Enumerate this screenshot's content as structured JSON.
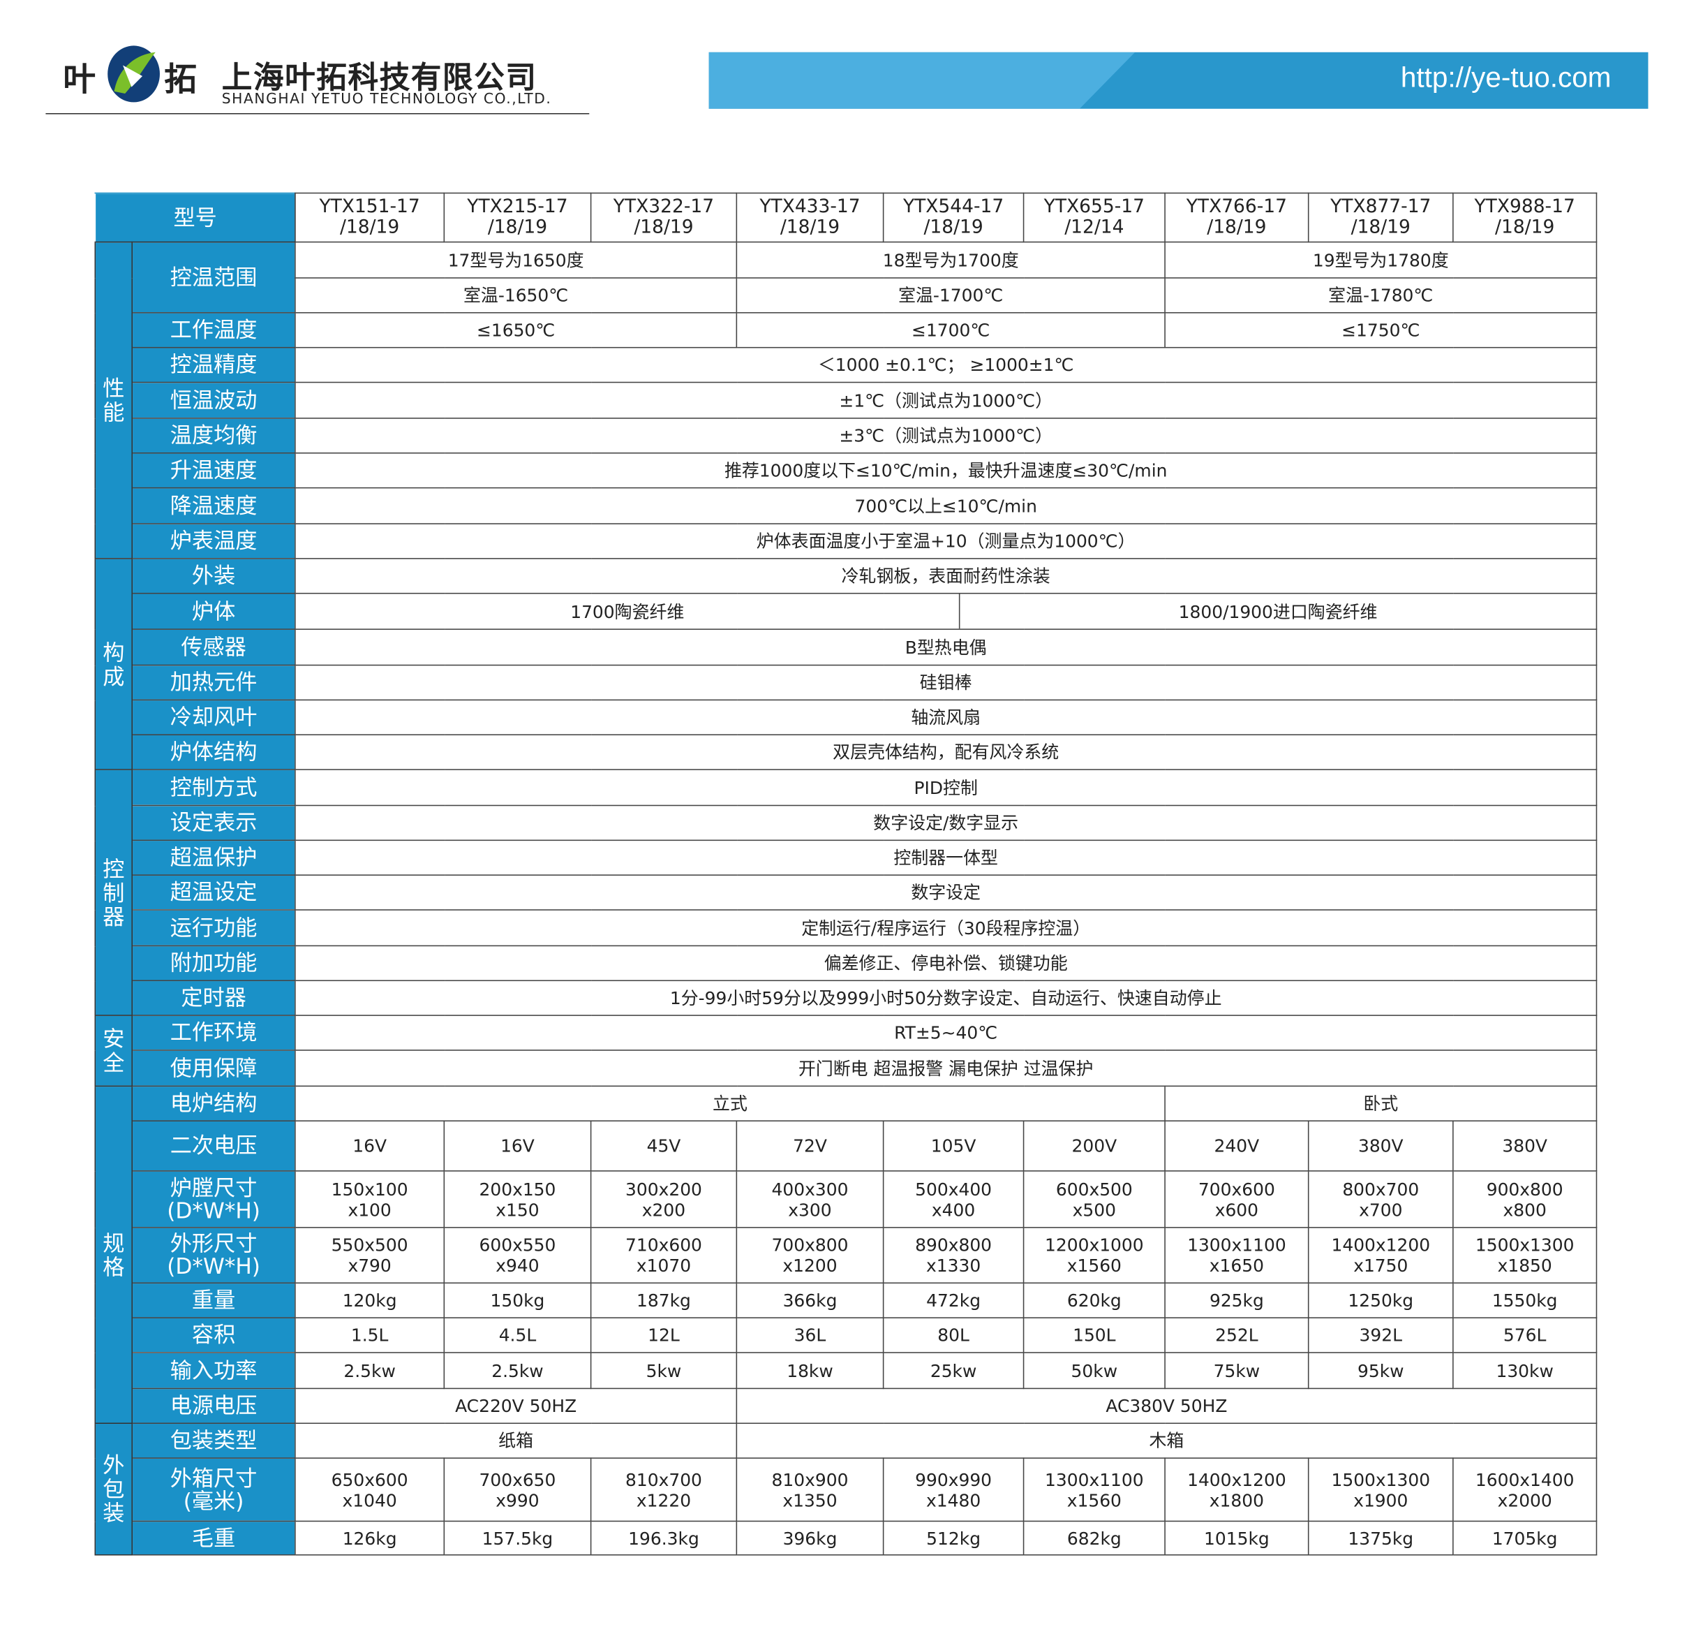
{
  "header": {
    "logo_left": "叶",
    "logo_right": "拓",
    "company_cn": "上海叶拓科技有限公司",
    "company_en": "SHANGHAI  YETUO  TECHNOLOGY  CO.,LTD.",
    "url": "http://ye-tuo.com",
    "colors": {
      "brand_blue": "#1a91c8",
      "banner_light": "#4cafe0",
      "banner_dark": "#2997cc",
      "logo_navy": "#123f78",
      "logo_green": "#7bbf2a"
    }
  },
  "table": {
    "model_label": "型号",
    "models": [
      "YTX151-17\n/18/19",
      "YTX215-17\n/18/19",
      "YTX322-17\n/18/19",
      "YTX433-17\n/18/19",
      "YTX544-17\n/18/19",
      "YTX655-17\n/12/14",
      "YTX766-17\n/18/19",
      "YTX877-17\n/18/19",
      "YTX988-17\n/18/19"
    ],
    "groups": [
      {
        "name": "性\n能",
        "rows": [
          {
            "label": "控温范围",
            "h": 65,
            "sub": [
              {
                "h": 33,
                "cells": [
                  [
                    "17型号为1650度",
                    3
                  ],
                  [
                    "18型号为1700度",
                    3
                  ],
                  [
                    "19型号为1780度",
                    3
                  ]
                ]
              },
              {
                "h": 32,
                "cells": [
                  [
                    "室温-1650℃",
                    3
                  ],
                  [
                    "室温-1700℃",
                    3
                  ],
                  [
                    "室温-1780℃",
                    3
                  ]
                ]
              }
            ]
          },
          {
            "label": "工作温度",
            "h": 32,
            "cells": [
              [
                "≤1650℃",
                3
              ],
              [
                "≤1700℃",
                3
              ],
              [
                "≤1750℃",
                3
              ]
            ]
          },
          {
            "label": "控温精度",
            "h": 32,
            "cells": [
              [
                "＜1000 ±0.1℃；  ≥1000±1℃",
                9
              ]
            ]
          },
          {
            "label": "恒温波动",
            "h": 33,
            "cells": [
              [
                "±1℃（测试点为1000℃）",
                9
              ]
            ]
          },
          {
            "label": "温度均衡",
            "h": 32,
            "cells": [
              [
                "±3℃（测试点为1000℃）",
                9
              ]
            ]
          },
          {
            "label": "升温速度",
            "h": 32,
            "cells": [
              [
                "推荐1000度以下≤10℃/min，最快升温速度≤30℃/min",
                9
              ]
            ]
          },
          {
            "label": "降温速度",
            "h": 33,
            "cells": [
              [
                "700℃以上≤10℃/min",
                9
              ]
            ]
          },
          {
            "label": "炉表温度",
            "h": 32,
            "cells": [
              [
                "炉体表面温度小于室温+10（测量点为1000℃）",
                9
              ]
            ]
          }
        ]
      },
      {
        "name": "构\n成",
        "rows": [
          {
            "label": "外装",
            "h": 32,
            "cells": [
              [
                "冷轧钢板，表面耐药性涂装",
                9
              ]
            ]
          },
          {
            "label": "炉体",
            "h": 32,
            "split": [
              "1700陶瓷纤维",
              "1800/1900进口陶瓷纤维"
            ]
          },
          {
            "label": "传感器",
            "h": 33,
            "cells": [
              [
                "B型热电偶",
                9
              ]
            ]
          },
          {
            "label": "加热元件",
            "h": 32,
            "cells": [
              [
                "硅钼棒",
                9
              ]
            ]
          },
          {
            "label": "冷却风叶",
            "h": 32,
            "cells": [
              [
                "轴流风扇",
                9
              ]
            ]
          },
          {
            "label": "炉体结构",
            "h": 32,
            "cells": [
              [
                "双层壳体结构，配有风冷系统",
                9
              ]
            ]
          }
        ]
      },
      {
        "name": "控\n制\n器",
        "rows": [
          {
            "label": "控制方式",
            "h": 33,
            "cells": [
              [
                "PID控制",
                9
              ]
            ]
          },
          {
            "label": "设定表示",
            "h": 32,
            "cells": [
              [
                "数字设定/数字显示",
                9
              ]
            ]
          },
          {
            "label": "超温保护",
            "h": 32,
            "cells": [
              [
                "控制器一体型",
                9
              ]
            ]
          },
          {
            "label": "超温设定",
            "h": 32,
            "cells": [
              [
                "数字设定",
                9
              ]
            ]
          },
          {
            "label": "运行功能",
            "h": 33,
            "cells": [
              [
                "定制运行/程序运行（30段程序控温）",
                9
              ]
            ]
          },
          {
            "label": "附加功能",
            "h": 32,
            "cells": [
              [
                "偏差修正、停电补偿、锁键功能",
                9
              ]
            ]
          },
          {
            "label": "定时器",
            "h": 32,
            "cells": [
              [
                "1分-99小时59分以及999小时50分数字设定、自动运行、快速自动停止",
                9
              ]
            ]
          }
        ]
      },
      {
        "name": "安\n全",
        "rows": [
          {
            "label": "工作环境",
            "h": 32,
            "cells": [
              [
                "RT±5~40℃",
                9
              ]
            ]
          },
          {
            "label": "使用保障",
            "h": 33,
            "cells": [
              [
                "开门断电 超温报警 漏电保护 过温保护",
                9
              ]
            ]
          }
        ]
      },
      {
        "name": "规\n格",
        "rows": [
          {
            "label": "电炉结构",
            "h": 32,
            "cells": [
              [
                "立式",
                6
              ],
              [
                "卧式",
                3
              ]
            ]
          },
          {
            "label": "二次电压",
            "h": 46,
            "cells": [
              [
                "16V",
                1
              ],
              [
                "16V",
                1
              ],
              [
                "45V",
                1
              ],
              [
                "72V",
                1
              ],
              [
                "105V",
                1
              ],
              [
                "200V",
                1
              ],
              [
                "240V",
                1
              ],
              [
                "380V",
                1
              ],
              [
                "380V",
                1
              ]
            ]
          },
          {
            "label": "炉膛尺寸\n(D*W*H)",
            "h": 52,
            "cells": [
              [
                "150x100\nx100",
                1
              ],
              [
                "200x150\nx150",
                1
              ],
              [
                "300x200\nx200",
                1
              ],
              [
                "400x300\nx300",
                1
              ],
              [
                "500x400\nx400",
                1
              ],
              [
                "600x500\nx500",
                1
              ],
              [
                "700x600\nx600",
                1
              ],
              [
                "800x700\nx700",
                1
              ],
              [
                "900x800\nx800",
                1
              ]
            ]
          },
          {
            "label": "外形尺寸\n(D*W*H)",
            "h": 51,
            "cells": [
              [
                "550x500\nx790",
                1
              ],
              [
                "600x550\nx940",
                1
              ],
              [
                "710x600\nx1070",
                1
              ],
              [
                "700x800\nx1200",
                1
              ],
              [
                "890x800\nx1330",
                1
              ],
              [
                "1200x1000\nx1560",
                1
              ],
              [
                "1300x1100\nx1650",
                1
              ],
              [
                "1400x1200\nx1750",
                1
              ],
              [
                "1500x1300\nx1850",
                1
              ]
            ]
          },
          {
            "label": "重量",
            "h": 32,
            "cells": [
              [
                "120kg",
                1
              ],
              [
                "150kg",
                1
              ],
              [
                "187kg",
                1
              ],
              [
                "366kg",
                1
              ],
              [
                "472kg",
                1
              ],
              [
                "620kg",
                1
              ],
              [
                "925kg",
                1
              ],
              [
                "1250kg",
                1
              ],
              [
                "1550kg",
                1
              ]
            ]
          },
          {
            "label": "容积",
            "h": 32,
            "cells": [
              [
                "1.5L",
                1
              ],
              [
                "4.5L",
                1
              ],
              [
                "12L",
                1
              ],
              [
                "36L",
                1
              ],
              [
                "80L",
                1
              ],
              [
                "150L",
                1
              ],
              [
                "252L",
                1
              ],
              [
                "392L",
                1
              ],
              [
                "576L",
                1
              ]
            ]
          },
          {
            "label": "输入功率",
            "h": 33,
            "cells": [
              [
                "2.5kw",
                1
              ],
              [
                "2.5kw",
                1
              ],
              [
                "5kw",
                1
              ],
              [
                "18kw",
                1
              ],
              [
                "25kw",
                1
              ],
              [
                "50kw",
                1
              ],
              [
                "75kw",
                1
              ],
              [
                "95kw",
                1
              ],
              [
                "130kw",
                1
              ]
            ]
          },
          {
            "label": "电源电压",
            "h": 32,
            "cells": [
              [
                "AC220V 50HZ",
                3
              ],
              [
                "AC380V 50HZ",
                6
              ]
            ]
          }
        ]
      },
      {
        "name": "外\n包\n装",
        "rows": [
          {
            "label": "包装类型",
            "h": 32,
            "cells": [
              [
                "纸箱",
                3
              ],
              [
                "木箱",
                6
              ]
            ]
          },
          {
            "label": "外箱尺寸\n(毫米)",
            "h": 58,
            "cells": [
              [
                "650x600\nx1040",
                1
              ],
              [
                "700x650\nx990",
                1
              ],
              [
                "810x700\nx1220",
                1
              ],
              [
                "810x900\nx1350",
                1
              ],
              [
                "990x990\nx1480",
                1
              ],
              [
                "1300x1100\nx1560",
                1
              ],
              [
                "1400x1200\nx1800",
                1
              ],
              [
                "1500x1300\nx1900",
                1
              ],
              [
                "1600x1400\nx2000",
                1
              ]
            ]
          },
          {
            "label": "毛重",
            "h": 31,
            "cells": [
              [
                "126kg",
                1
              ],
              [
                "157.5kg",
                1
              ],
              [
                "196.3kg",
                1
              ],
              [
                "396kg",
                1
              ],
              [
                "512kg",
                1
              ],
              [
                "682kg",
                1
              ],
              [
                "1015kg",
                1
              ],
              [
                "1375kg",
                1
              ],
              [
                "1705kg",
                1
              ]
            ]
          }
        ]
      }
    ]
  }
}
